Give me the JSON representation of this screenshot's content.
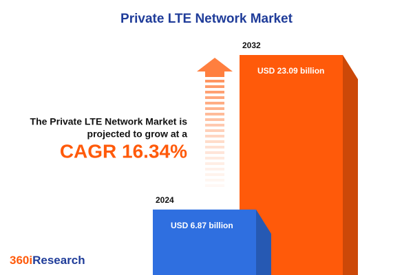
{
  "chart_data": {
    "type": "bar",
    "title": "Private LTE Network Market",
    "categories": [
      "2024",
      "2032"
    ],
    "values": [
      6.87,
      23.09
    ],
    "value_labels": [
      "USD 6.87 billion",
      "USD 23.09 billion"
    ],
    "colors": [
      "#2f6fe0",
      "#ff5a0a"
    ],
    "annotation": [
      "The Private LTE Network Market is",
      "projected to grow at a"
    ],
    "highlight": "CAGR 16.34%",
    "logo": {
      "prefix": "360i",
      "name": "Research"
    }
  }
}
